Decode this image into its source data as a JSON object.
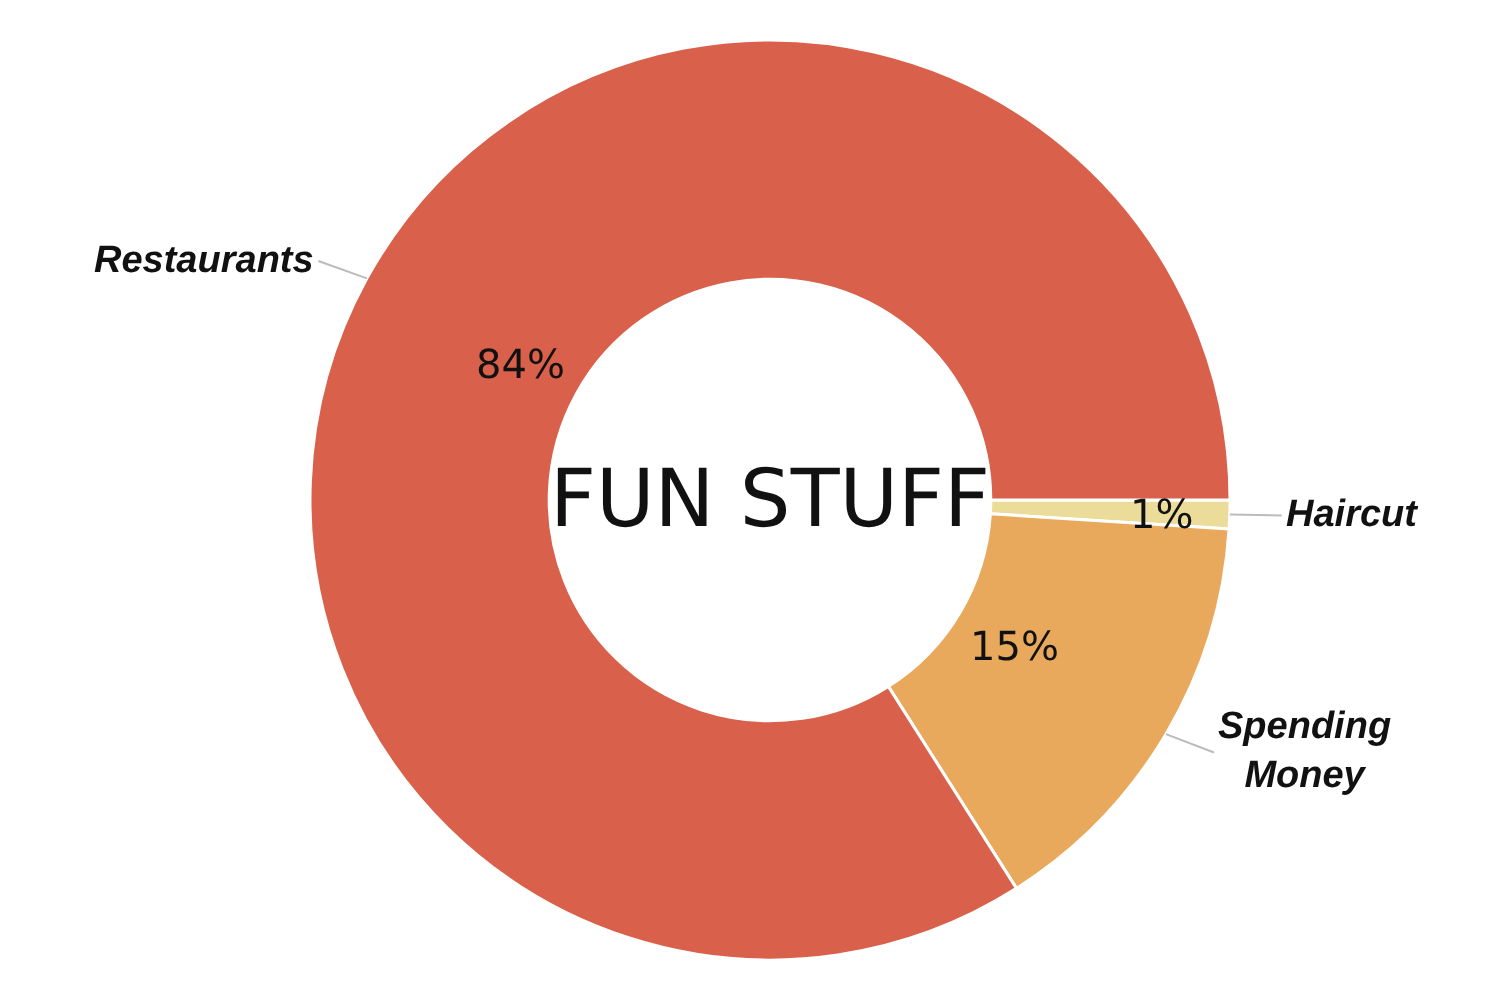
{
  "chart_data": {
    "type": "donut",
    "title": "FUN STUFF",
    "categories": [
      "Haircut",
      "Spending Money",
      "Restaurants"
    ],
    "values": [
      1,
      15,
      84
    ],
    "value_labels": [
      "1%",
      "15%",
      "84%"
    ],
    "colors": [
      "#ecdc9a",
      "#e8a95c",
      "#d9604a"
    ]
  }
}
